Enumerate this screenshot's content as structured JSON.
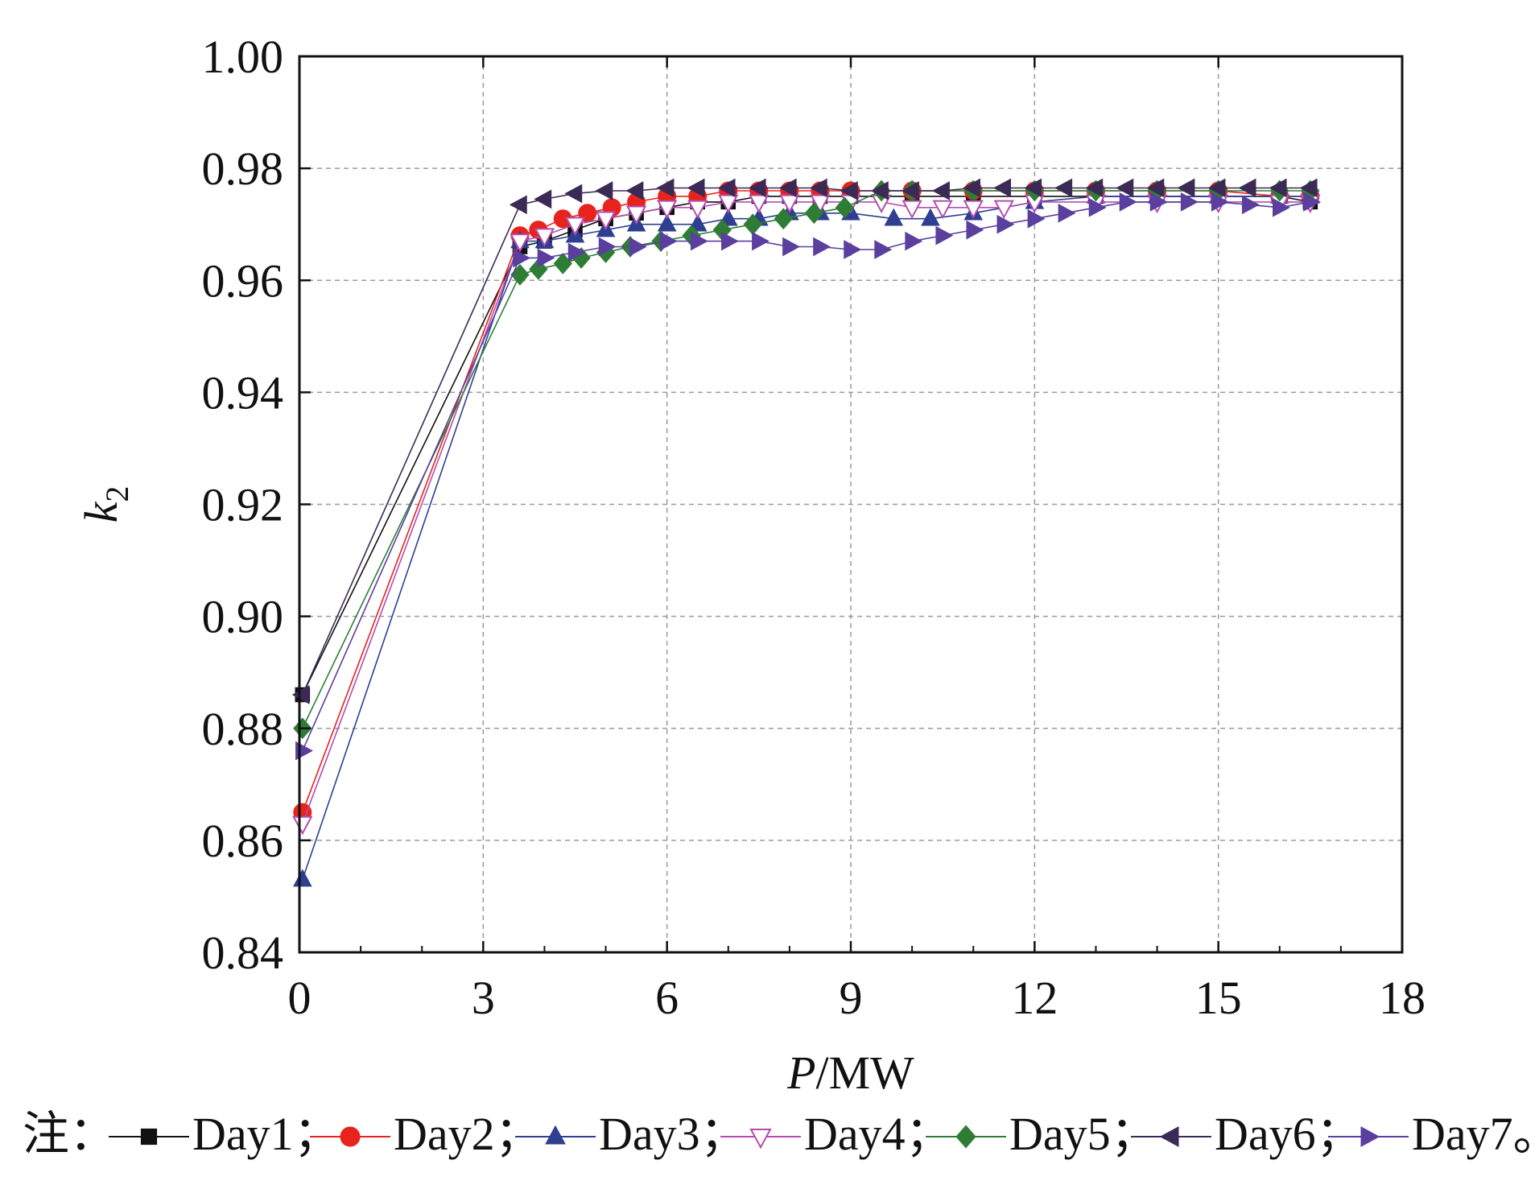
{
  "chart_data": {
    "type": "line",
    "xlabel": {
      "italic": "P",
      "rest": "/MW"
    },
    "ylabel": {
      "italic": "k",
      "sub": "2"
    },
    "xlim": [
      0,
      18
    ],
    "ylim": [
      0.84,
      1.0
    ],
    "xticks": [
      "0",
      "3",
      "6",
      "9",
      "12",
      "15",
      "18"
    ],
    "yticks": [
      "0.84",
      "0.86",
      "0.88",
      "0.90",
      "0.92",
      "0.94",
      "0.96",
      "0.98",
      "1.00"
    ],
    "grid": true,
    "legend_position": "bottom",
    "legend_prefix": "注：",
    "legend_separator": "；",
    "legend_end": "。",
    "series": [
      {
        "name": "Day1",
        "color": "#111111",
        "marker": "square",
        "fill": true,
        "x": [
          0.05,
          3.6,
          4.0,
          4.5,
          5.0,
          5.5,
          6.0,
          6.5,
          7.0,
          7.5,
          8.0,
          8.5,
          9.0,
          10.0,
          11.0,
          12.0,
          13.0,
          14.0,
          15.0,
          16.0,
          16.5
        ],
        "y": [
          0.886,
          0.966,
          0.967,
          0.969,
          0.971,
          0.972,
          0.973,
          0.974,
          0.974,
          0.975,
          0.975,
          0.975,
          0.975,
          0.975,
          0.975,
          0.975,
          0.975,
          0.975,
          0.975,
          0.975,
          0.974
        ]
      },
      {
        "name": "Day2",
        "color": "#e8231c",
        "marker": "circle",
        "fill": true,
        "x": [
          0.05,
          3.6,
          3.9,
          4.3,
          4.7,
          5.1,
          5.5,
          6.0,
          6.5,
          7.0,
          7.5,
          8.0,
          8.5,
          9.0,
          10.0,
          11.0,
          12.0,
          13.0,
          14.0,
          15.0,
          16.0,
          16.5
        ],
        "y": [
          0.865,
          0.968,
          0.969,
          0.971,
          0.972,
          0.973,
          0.974,
          0.975,
          0.975,
          0.976,
          0.976,
          0.976,
          0.976,
          0.976,
          0.976,
          0.976,
          0.976,
          0.976,
          0.976,
          0.976,
          0.975,
          0.975
        ]
      },
      {
        "name": "Day3",
        "color": "#2e3f92",
        "marker": "triangle-up",
        "fill": true,
        "x": [
          0.05,
          3.6,
          4.0,
          4.5,
          5.0,
          5.5,
          6.0,
          6.5,
          7.0,
          7.5,
          8.0,
          8.5,
          9.0,
          9.7,
          10.3,
          11.0,
          12.0,
          13.0,
          14.0,
          15.0,
          16.0,
          16.5
        ],
        "y": [
          0.853,
          0.967,
          0.967,
          0.968,
          0.969,
          0.97,
          0.97,
          0.97,
          0.971,
          0.971,
          0.972,
          0.972,
          0.972,
          0.971,
          0.971,
          0.972,
          0.974,
          0.975,
          0.975,
          0.975,
          0.975,
          0.975
        ]
      },
      {
        "name": "Day4",
        "color": "#b44cb0",
        "marker": "triangle-down",
        "fill": false,
        "x": [
          0.05,
          3.6,
          4.0,
          4.5,
          5.0,
          5.5,
          6.0,
          6.5,
          7.0,
          7.5,
          8.0,
          8.5,
          9.0,
          9.5,
          10.0,
          10.5,
          11.0,
          11.5,
          12.0,
          13.0,
          14.0,
          15.0,
          16.0,
          16.5
        ],
        "y": [
          0.863,
          0.967,
          0.968,
          0.97,
          0.971,
          0.972,
          0.973,
          0.973,
          0.974,
          0.974,
          0.974,
          0.974,
          0.974,
          0.974,
          0.973,
          0.973,
          0.973,
          0.973,
          0.974,
          0.974,
          0.974,
          0.974,
          0.974,
          0.974
        ]
      },
      {
        "name": "Day5",
        "color": "#2f7d35",
        "marker": "diamond",
        "fill": true,
        "x": [
          0.05,
          3.6,
          3.9,
          4.3,
          4.6,
          5.0,
          5.4,
          5.9,
          6.4,
          6.9,
          7.4,
          7.9,
          8.4,
          8.9,
          9.5,
          10.0,
          11.0,
          12.0,
          13.0,
          14.0,
          15.0,
          16.0,
          16.5
        ],
        "y": [
          0.88,
          0.961,
          0.962,
          0.963,
          0.964,
          0.965,
          0.966,
          0.967,
          0.968,
          0.969,
          0.97,
          0.971,
          0.972,
          0.973,
          0.976,
          0.976,
          0.976,
          0.976,
          0.976,
          0.976,
          0.976,
          0.976,
          0.976
        ]
      },
      {
        "name": "Day6",
        "color": "#3a2a55",
        "marker": "triangle-left",
        "fill": true,
        "x": [
          0.05,
          3.6,
          4.0,
          4.5,
          5.0,
          5.5,
          6.0,
          6.5,
          7.0,
          7.5,
          8.0,
          8.5,
          9.0,
          9.5,
          10.0,
          10.5,
          11.0,
          11.5,
          12.0,
          12.5,
          13.0,
          13.5,
          14.0,
          14.5,
          15.0,
          15.5,
          16.0,
          16.5
        ],
        "y": [
          0.886,
          0.9735,
          0.9745,
          0.9755,
          0.976,
          0.976,
          0.9765,
          0.9765,
          0.9765,
          0.9765,
          0.9765,
          0.9765,
          0.976,
          0.976,
          0.976,
          0.976,
          0.9765,
          0.9765,
          0.9765,
          0.9765,
          0.9765,
          0.9765,
          0.9765,
          0.9765,
          0.9765,
          0.9765,
          0.9765,
          0.9765
        ]
      },
      {
        "name": "Day7",
        "color": "#5a3f9e",
        "marker": "triangle-right",
        "fill": true,
        "x": [
          0.05,
          3.6,
          4.0,
          4.5,
          5.0,
          5.5,
          6.0,
          6.5,
          7.0,
          7.5,
          8.0,
          8.5,
          9.0,
          9.5,
          10.0,
          10.5,
          11.0,
          11.5,
          12.0,
          12.5,
          13.0,
          13.5,
          14.0,
          14.5,
          15.0,
          15.5,
          16.0,
          16.5
        ],
        "y": [
          0.876,
          0.964,
          0.964,
          0.965,
          0.966,
          0.966,
          0.967,
          0.967,
          0.967,
          0.967,
          0.966,
          0.966,
          0.9655,
          0.9655,
          0.967,
          0.968,
          0.969,
          0.97,
          0.971,
          0.972,
          0.973,
          0.974,
          0.974,
          0.974,
          0.974,
          0.9735,
          0.973,
          0.974
        ]
      }
    ]
  }
}
